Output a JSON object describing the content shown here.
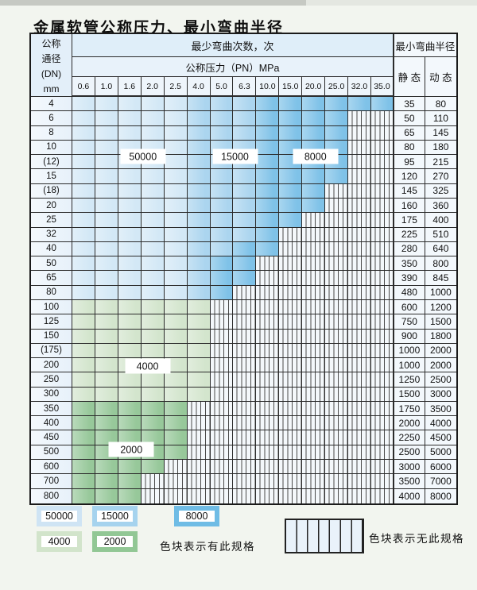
{
  "page": {
    "title": "金属软管公称压力、最小弯曲半径"
  },
  "table": {
    "corner_header": [
      "公称",
      "通径",
      "(DN)",
      "mm"
    ],
    "bend_cycles_header": "最少弯曲次数，次",
    "pressure_header": "公称压力（PN）MPa",
    "radius_header": "最小弯曲半径",
    "static_header": "静 态",
    "dynamic_header": "动 态",
    "pressure_columns": [
      "0.6",
      "1.0",
      "1.6",
      "2.0",
      "2.5",
      "4.0",
      "5.0",
      "6.3",
      "10.0",
      "15.0",
      "20.0",
      "25.0",
      "32.0",
      "35.0"
    ],
    "zone_codes": {
      "L": "50000 cycles (light blue)",
      "M": "15000 cycles (medium blue)",
      "D": "8000 cycles (dark blue)",
      "G": "4000 cycles (light green)",
      "E": "2000 cycles (dark green)",
      "H": "no such specification (hatched)"
    },
    "rows": [
      {
        "dn": "4",
        "zones": "LLLLLMMMDDDDDD",
        "static": "35",
        "dynamic": "80"
      },
      {
        "dn": "6",
        "zones": "LLLLLMMMDDDDHH",
        "static": "50",
        "dynamic": "110"
      },
      {
        "dn": "8",
        "zones": "LLLLLMMMDDDDHH",
        "static": "65",
        "dynamic": "145"
      },
      {
        "dn": "10",
        "zones": "LLLLLMMMDDDDHH",
        "static": "80",
        "dynamic": "180"
      },
      {
        "dn": "(12)",
        "zones": "LLLLLMMMDDDDHH",
        "static": "95",
        "dynamic": "215"
      },
      {
        "dn": "15",
        "zones": "LLLLLMMMDDDDHH",
        "static": "120",
        "dynamic": "270"
      },
      {
        "dn": "(18)",
        "zones": "LLLLLMMMDDDHHH",
        "static": "145",
        "dynamic": "325"
      },
      {
        "dn": "20",
        "zones": "LLLLLMMMDDDHHH",
        "static": "160",
        "dynamic": "360"
      },
      {
        "dn": "25",
        "zones": "LLLLLMMMDDHHHH",
        "static": "175",
        "dynamic": "400"
      },
      {
        "dn": "32",
        "zones": "LLLLLMMMDHHHHH",
        "static": "225",
        "dynamic": "510"
      },
      {
        "dn": "40",
        "zones": "LLLLLMMDDHHHHH",
        "static": "280",
        "dynamic": "640"
      },
      {
        "dn": "50",
        "zones": "LLLLLMDDHHHHHH",
        "static": "350",
        "dynamic": "800"
      },
      {
        "dn": "65",
        "zones": "LLLLLMDDHHHHHH",
        "static": "390",
        "dynamic": "845"
      },
      {
        "dn": "80",
        "zones": "LLLLLMDHHHHHHH",
        "static": "480",
        "dynamic": "1000"
      },
      {
        "dn": "100",
        "zones": "GGGGGGHHHHHHHH",
        "static": "600",
        "dynamic": "1200"
      },
      {
        "dn": "125",
        "zones": "GGGGGGHHHHHHHH",
        "static": "750",
        "dynamic": "1500"
      },
      {
        "dn": "150",
        "zones": "GGGGGGHHHHHHHH",
        "static": "900",
        "dynamic": "1800"
      },
      {
        "dn": "(175)",
        "zones": "GGGGGGHHHHHHHH",
        "static": "1000",
        "dynamic": "2000"
      },
      {
        "dn": "200",
        "zones": "GGGGGGHHHHHHHH",
        "static": "1000",
        "dynamic": "2000"
      },
      {
        "dn": "250",
        "zones": "GGGGGGHHHHHHHH",
        "static": "1250",
        "dynamic": "2500"
      },
      {
        "dn": "300",
        "zones": "GGGGGGHHHHHHHH",
        "static": "1500",
        "dynamic": "3000"
      },
      {
        "dn": "350",
        "zones": "EEEEEHHHHHHHHH",
        "static": "1750",
        "dynamic": "3500"
      },
      {
        "dn": "400",
        "zones": "EEEEEHHHHHHHHH",
        "static": "2000",
        "dynamic": "4000"
      },
      {
        "dn": "450",
        "zones": "EEEEEHHHHHHHHH",
        "static": "2250",
        "dynamic": "4500"
      },
      {
        "dn": "500",
        "zones": "EEEEEHHHHHHHHH",
        "static": "2500",
        "dynamic": "5000"
      },
      {
        "dn": "600",
        "zones": "EEEEHHHHHHHHHH",
        "static": "3000",
        "dynamic": "6000"
      },
      {
        "dn": "700",
        "zones": "EEEHHHHHHHHHHH",
        "static": "3500",
        "dynamic": "7000"
      },
      {
        "dn": "800",
        "zones": "EEEHHHHHHHHHHH",
        "static": "4000",
        "dynamic": "8000"
      }
    ]
  },
  "cycle_labels": [
    {
      "text": "50000",
      "col_u": 3.0,
      "row_v": 4.0
    },
    {
      "text": "15000",
      "col_u": 7.0,
      "row_v": 4.0
    },
    {
      "text": "8000",
      "col_u": 10.5,
      "row_v": 4.0
    },
    {
      "text": "4000",
      "col_u": 3.2,
      "row_v": 18.45
    },
    {
      "text": "2000",
      "col_u": 2.5,
      "row_v": 24.2
    }
  ],
  "legend": {
    "swatches": [
      {
        "label": "50000",
        "color": "#cfe4f4"
      },
      {
        "label": "15000",
        "color": "#a6d3ee"
      },
      {
        "label": "8000",
        "color": "#6fbce5"
      },
      {
        "label": "4000",
        "color": "#d2e4cb"
      },
      {
        "label": "2000",
        "color": "#92c795"
      }
    ],
    "available_note": "色块表示有此规格",
    "unavailable_note": "色块表示无此规格"
  },
  "colors": {
    "zone_light_blue": "#d3e8f6",
    "zone_medium_blue": "#abd5ef",
    "zone_dark_blue": "#7fc2e8",
    "zone_light_green": "#d3e5cd",
    "zone_dark_green": "#97c89a",
    "hatch_bg": "#f4f8fb",
    "grid_line": "#2b2b2b"
  }
}
